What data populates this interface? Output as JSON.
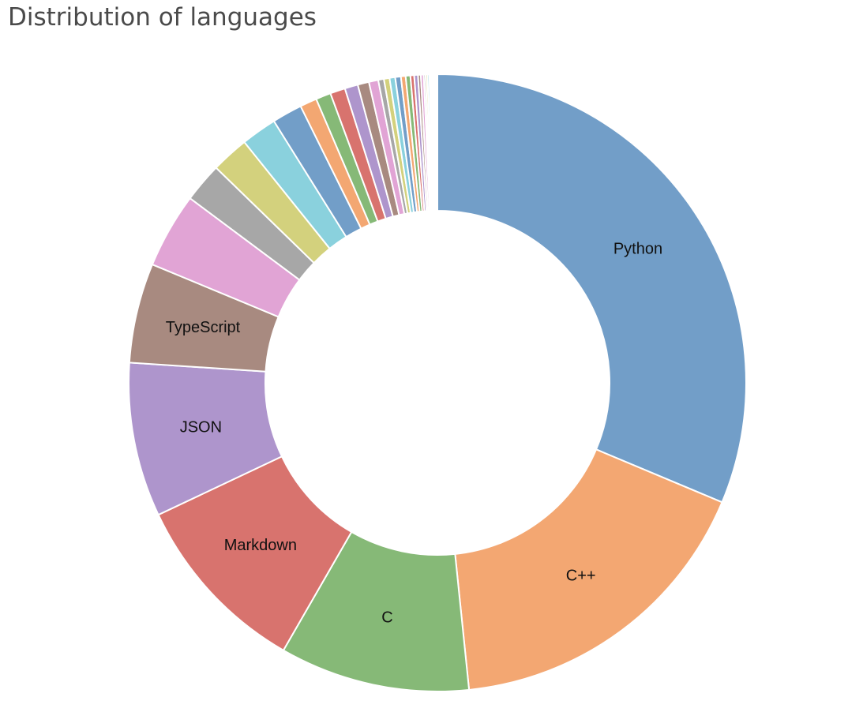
{
  "chart_data": {
    "type": "pie",
    "title": "Distribution of languages",
    "donut": true,
    "legend": "none",
    "slices": [
      {
        "label": "Python",
        "value": 31.8,
        "color": "#729ec8",
        "show_label": true
      },
      {
        "label": "C++",
        "value": 17.3,
        "color": "#f3a772",
        "show_label": true
      },
      {
        "label": "C",
        "value": 10.1,
        "color": "#86b977",
        "show_label": true
      },
      {
        "label": "Markdown",
        "value": 9.8,
        "color": "#d8736e",
        "show_label": true
      },
      {
        "label": "JSON",
        "value": 8.2,
        "color": "#ae95cc",
        "show_label": true
      },
      {
        "label": "TypeScript",
        "value": 5.3,
        "color": "#a88a80",
        "show_label": true
      },
      {
        "label": "",
        "value": 4.0,
        "color": "#e1a4d5",
        "show_label": false
      },
      {
        "label": "",
        "value": 2.1,
        "color": "#a7a7a7",
        "show_label": false
      },
      {
        "label": "",
        "value": 2.0,
        "color": "#d3d17d",
        "show_label": false
      },
      {
        "label": "",
        "value": 1.9,
        "color": "#8ad1dd",
        "show_label": false
      },
      {
        "label": "",
        "value": 1.6,
        "color": "#729ec8",
        "show_label": false
      },
      {
        "label": "",
        "value": 0.9,
        "color": "#f3a772",
        "show_label": false
      },
      {
        "label": "",
        "value": 0.8,
        "color": "#86b977",
        "show_label": false
      },
      {
        "label": "",
        "value": 0.8,
        "color": "#d8736e",
        "show_label": false
      },
      {
        "label": "",
        "value": 0.7,
        "color": "#ae95cc",
        "show_label": false
      },
      {
        "label": "",
        "value": 0.6,
        "color": "#a88a80",
        "show_label": false
      },
      {
        "label": "",
        "value": 0.5,
        "color": "#e1a4d5",
        "show_label": false
      },
      {
        "label": "",
        "value": 0.3,
        "color": "#a7a7a7",
        "show_label": false
      },
      {
        "label": "",
        "value": 0.3,
        "color": "#d3d17d",
        "show_label": false
      },
      {
        "label": "",
        "value": 0.3,
        "color": "#8ad1dd",
        "show_label": false
      },
      {
        "label": "",
        "value": 0.3,
        "color": "#729ec8",
        "show_label": false
      },
      {
        "label": "",
        "value": 0.25,
        "color": "#f3a772",
        "show_label": false
      },
      {
        "label": "",
        "value": 0.25,
        "color": "#86b977",
        "show_label": false
      },
      {
        "label": "",
        "value": 0.2,
        "color": "#d8736e",
        "show_label": false
      },
      {
        "label": "",
        "value": 0.2,
        "color": "#ae95cc",
        "show_label": false
      },
      {
        "label": "",
        "value": 0.15,
        "color": "#a88a80",
        "show_label": false
      },
      {
        "label": "",
        "value": 0.15,
        "color": "#e1a4d5",
        "show_label": false
      },
      {
        "label": "",
        "value": 0.1,
        "color": "#a7a7a7",
        "show_label": false
      },
      {
        "label": "",
        "value": 0.1,
        "color": "#d3d17d",
        "show_label": false
      },
      {
        "label": "",
        "value": 0.1,
        "color": "#8ad1dd",
        "show_label": false
      },
      {
        "label": "",
        "value": 0.07,
        "color": "#729ec8",
        "show_label": false
      },
      {
        "label": "",
        "value": 0.07,
        "color": "#f3a772",
        "show_label": false
      },
      {
        "label": "",
        "value": 0.05,
        "color": "#86b977",
        "show_label": false
      },
      {
        "label": "",
        "value": 0.05,
        "color": "#d8736e",
        "show_label": false
      },
      {
        "label": "",
        "value": 0.04,
        "color": "#ae95cc",
        "show_label": false
      },
      {
        "label": "",
        "value": 0.04,
        "color": "#a88a80",
        "show_label": false
      },
      {
        "label": "",
        "value": 0.03,
        "color": "#e1a4d5",
        "show_label": false
      },
      {
        "label": "",
        "value": 0.03,
        "color": "#a7a7a7",
        "show_label": false
      },
      {
        "label": "",
        "value": 0.02,
        "color": "#d3d17d",
        "show_label": false
      },
      {
        "label": "",
        "value": 0.02,
        "color": "#8ad1dd",
        "show_label": false
      }
    ]
  }
}
